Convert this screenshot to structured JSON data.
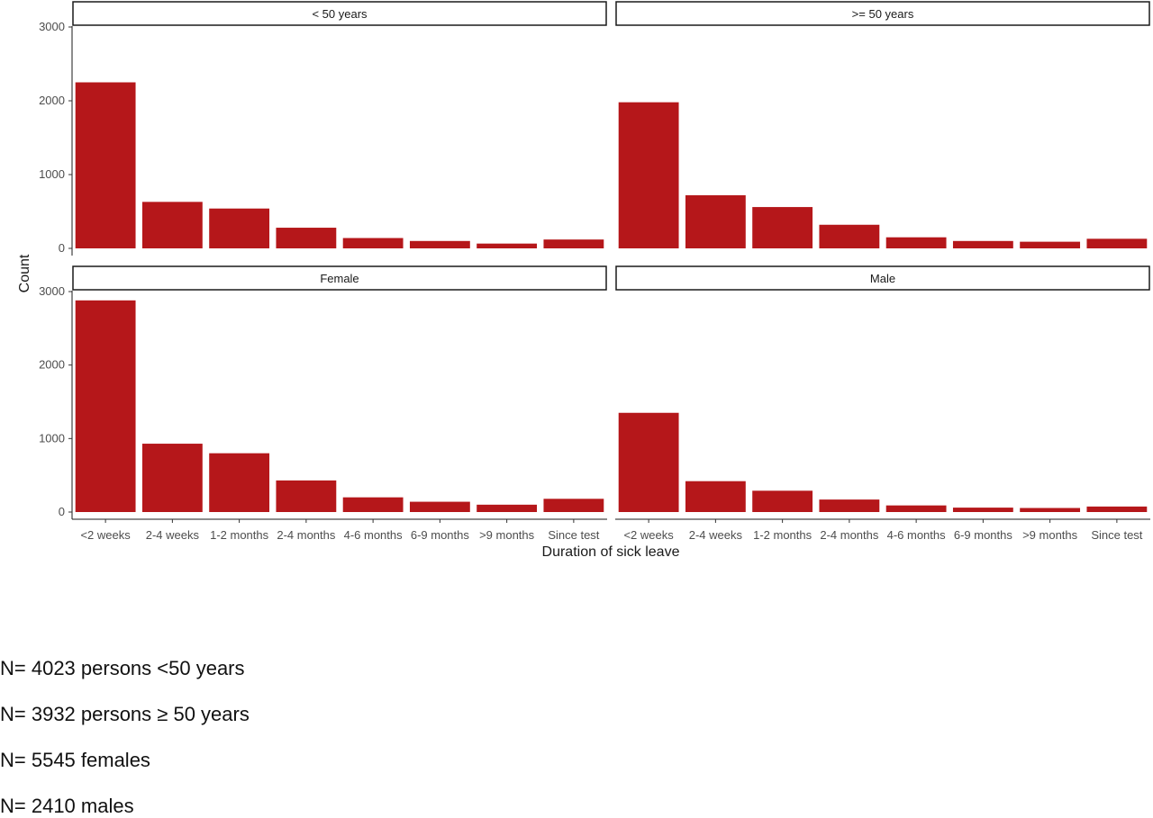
{
  "chart_data": {
    "type": "bar",
    "xlabel": "Duration of sick leave",
    "ylabel": "Count",
    "ylim": [
      0,
      3000
    ],
    "yticks": [
      0,
      1000,
      2000,
      3000
    ],
    "grid": false,
    "bar_color": "#B5171A",
    "categories": [
      "<2 weeks",
      "2-4 weeks",
      "1-2 months",
      "2-4 months",
      "4-6 months",
      "6-9 months",
      ">9 months",
      "Since test"
    ],
    "panels": [
      {
        "title": "< 50 years",
        "values": [
          2250,
          630,
          540,
          280,
          140,
          100,
          65,
          120
        ]
      },
      {
        "title": ">= 50 years",
        "values": [
          1980,
          720,
          560,
          320,
          150,
          100,
          90,
          130
        ]
      },
      {
        "title": "Female",
        "values": [
          2880,
          930,
          800,
          430,
          200,
          140,
          100,
          180
        ]
      },
      {
        "title": "Male",
        "values": [
          1350,
          420,
          290,
          170,
          90,
          60,
          55,
          75
        ]
      }
    ]
  },
  "notes": [
    "N= 4023 persons <50 years",
    "N= 3932 persons ≥ 50 years",
    "N= 5545 females",
    "N= 2410 males"
  ]
}
